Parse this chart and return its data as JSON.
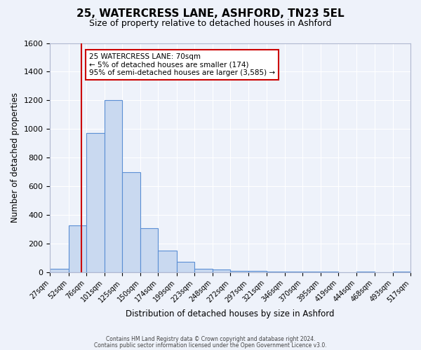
{
  "title": "25, WATERCRESS LANE, ASHFORD, TN23 5EL",
  "subtitle": "Size of property relative to detached houses in Ashford",
  "xlabel": "Distribution of detached houses by size in Ashford",
  "ylabel": "Number of detached properties",
  "bar_color": "#c9d9f0",
  "bar_edge_color": "#5b8fd4",
  "background_color": "#eef2fa",
  "grid_color": "#ffffff",
  "bin_edges": [
    27,
    52,
    76,
    101,
    125,
    150,
    174,
    199,
    223,
    248,
    272,
    297,
    321,
    346,
    370,
    395,
    419,
    444,
    468,
    493,
    517
  ],
  "bin_labels": [
    "27sqm",
    "52sqm",
    "76sqm",
    "101sqm",
    "125sqm",
    "150sqm",
    "174sqm",
    "199sqm",
    "223sqm",
    "248sqm",
    "272sqm",
    "297sqm",
    "321sqm",
    "346sqm",
    "370sqm",
    "395sqm",
    "419sqm",
    "444sqm",
    "468sqm",
    "493sqm",
    "517sqm"
  ],
  "counts": [
    25,
    325,
    970,
    1200,
    700,
    310,
    150,
    75,
    25,
    20,
    10,
    10,
    5,
    5,
    5,
    5,
    0,
    5,
    0,
    5
  ],
  "vline_x": 70,
  "vline_color": "#cc0000",
  "annotation_box_text": "25 WATERCRESS LANE: 70sqm\n← 5% of detached houses are smaller (174)\n95% of semi-detached houses are larger (3,585) →",
  "ylim": [
    0,
    1600
  ],
  "yticks": [
    0,
    200,
    400,
    600,
    800,
    1000,
    1200,
    1400,
    1600
  ],
  "footer1": "Contains HM Land Registry data © Crown copyright and database right 2024.",
  "footer2": "Contains public sector information licensed under the Open Government Licence v3.0."
}
